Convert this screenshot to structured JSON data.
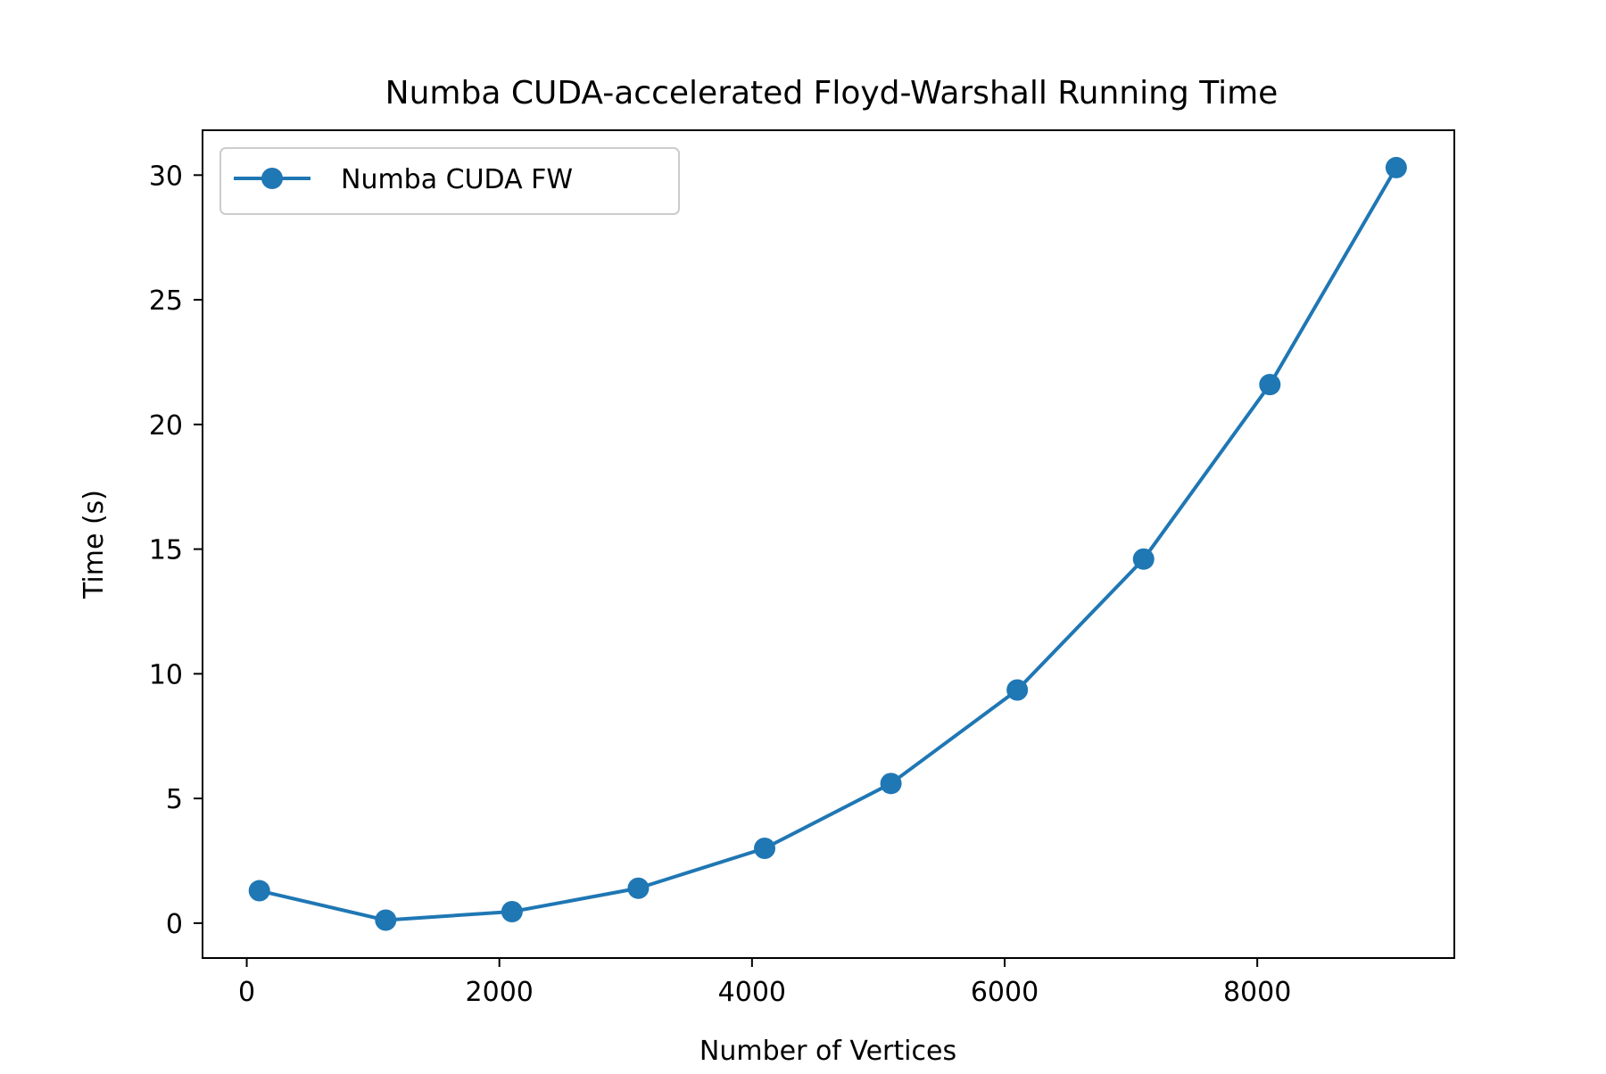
{
  "chart_data": {
    "type": "line",
    "title": "Numba CUDA-accelerated Floyd-Warshall Running Time",
    "xlabel": "Number of Vertices",
    "ylabel": "Time (s)",
    "xlim": [
      -350,
      9560
    ],
    "ylim": [
      -1.4,
      31.8
    ],
    "xticks": [
      0,
      2000,
      4000,
      6000,
      8000
    ],
    "yticks": [
      0,
      5,
      10,
      15,
      20,
      25,
      30
    ],
    "grid": false,
    "legend_position": "top-left",
    "series": [
      {
        "name": "Numba CUDA FW",
        "color": "#1f77b4",
        "marker": "circle",
        "x": [
          100,
          1100,
          2100,
          3100,
          4100,
          5100,
          6100,
          7100,
          8100,
          9100
        ],
        "y": [
          1.3,
          0.12,
          0.46,
          1.4,
          3.0,
          5.6,
          9.35,
          14.6,
          21.6,
          30.3
        ]
      }
    ]
  }
}
